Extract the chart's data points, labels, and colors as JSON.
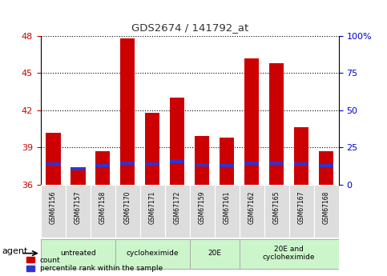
{
  "title": "GDS2674 / 141792_at",
  "samples": [
    "GSM67156",
    "GSM67157",
    "GSM67158",
    "GSM67170",
    "GSM67171",
    "GSM67172",
    "GSM67159",
    "GSM67161",
    "GSM67162",
    "GSM67165",
    "GSM67167",
    "GSM67168"
  ],
  "red_values": [
    40.2,
    37.3,
    38.7,
    47.8,
    41.8,
    43.0,
    39.9,
    39.8,
    46.2,
    45.8,
    40.6,
    38.7
  ],
  "blue_values": [
    37.5,
    37.15,
    37.4,
    37.6,
    37.5,
    37.75,
    37.45,
    37.4,
    37.6,
    37.6,
    37.5,
    37.4
  ],
  "blue_heights": [
    0.28,
    0.28,
    0.28,
    0.28,
    0.28,
    0.28,
    0.28,
    0.28,
    0.28,
    0.28,
    0.28,
    0.28
  ],
  "ylim": [
    36,
    48
  ],
  "yticks_left": [
    36,
    39,
    42,
    45,
    48
  ],
  "yright_labels": [
    "0",
    "25",
    "50",
    "75",
    "100%"
  ],
  "yright_values": [
    36,
    39,
    42,
    45,
    48
  ],
  "bar_width": 0.6,
  "red_color": "#cc0000",
  "blue_color": "#3333cc",
  "groups": [
    {
      "label": "untreated",
      "indices": [
        0,
        1,
        2
      ]
    },
    {
      "label": "cycloheximide",
      "indices": [
        3,
        4,
        5
      ]
    },
    {
      "label": "20E",
      "indices": [
        6,
        7
      ]
    },
    {
      "label": "20E and\ncycloheximide",
      "indices": [
        8,
        9,
        10,
        11
      ]
    }
  ],
  "group_bg_color": "#ccf5cc",
  "group_edge_color": "#aaaaaa",
  "legend_count_color": "#cc0000",
  "legend_percentile_color": "#3333cc",
  "agent_label": "agent",
  "title_color": "#333333",
  "left_tick_color": "#cc0000",
  "right_tick_color": "#0000cc",
  "bg_color": "#ffffff",
  "plot_bg_color": "#ffffff",
  "sample_bg_color": "#dddddd"
}
